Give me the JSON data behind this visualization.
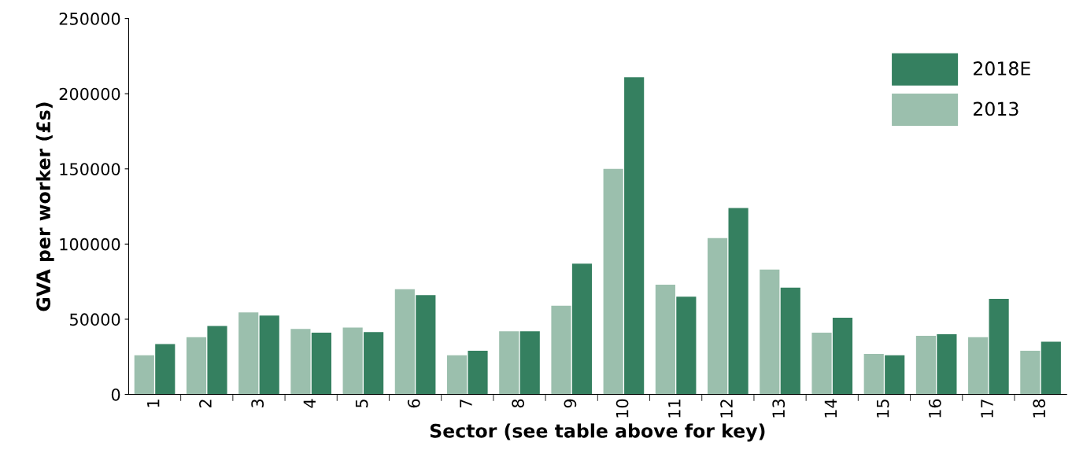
{
  "chart_data": {
    "type": "bar",
    "xlabel": "Sector (see table above for key)",
    "ylabel": "GVA per worker (£s)",
    "categories": [
      "1",
      "2",
      "3",
      "4",
      "5",
      "6",
      "7",
      "8",
      "9",
      "10",
      "11",
      "12",
      "13",
      "14",
      "15",
      "16",
      "17",
      "18"
    ],
    "series": [
      {
        "name": "2013",
        "color": "#9bbfad",
        "values": [
          26000,
          38000,
          54500,
          43500,
          44500,
          70000,
          26000,
          42000,
          59000,
          150000,
          73000,
          104000,
          83000,
          41000,
          27000,
          39000,
          38000,
          29000
        ]
      },
      {
        "name": "2018E",
        "color": "#358060",
        "values": [
          33500,
          45500,
          52500,
          41000,
          41500,
          66000,
          29000,
          42000,
          87000,
          211000,
          65000,
          124000,
          71000,
          51000,
          26000,
          40000,
          63500,
          35000
        ]
      }
    ],
    "ylim": [
      0,
      250000
    ],
    "yticks": [
      0,
      50000,
      100000,
      150000,
      200000,
      250000
    ],
    "grid": false,
    "legend": "top right"
  }
}
